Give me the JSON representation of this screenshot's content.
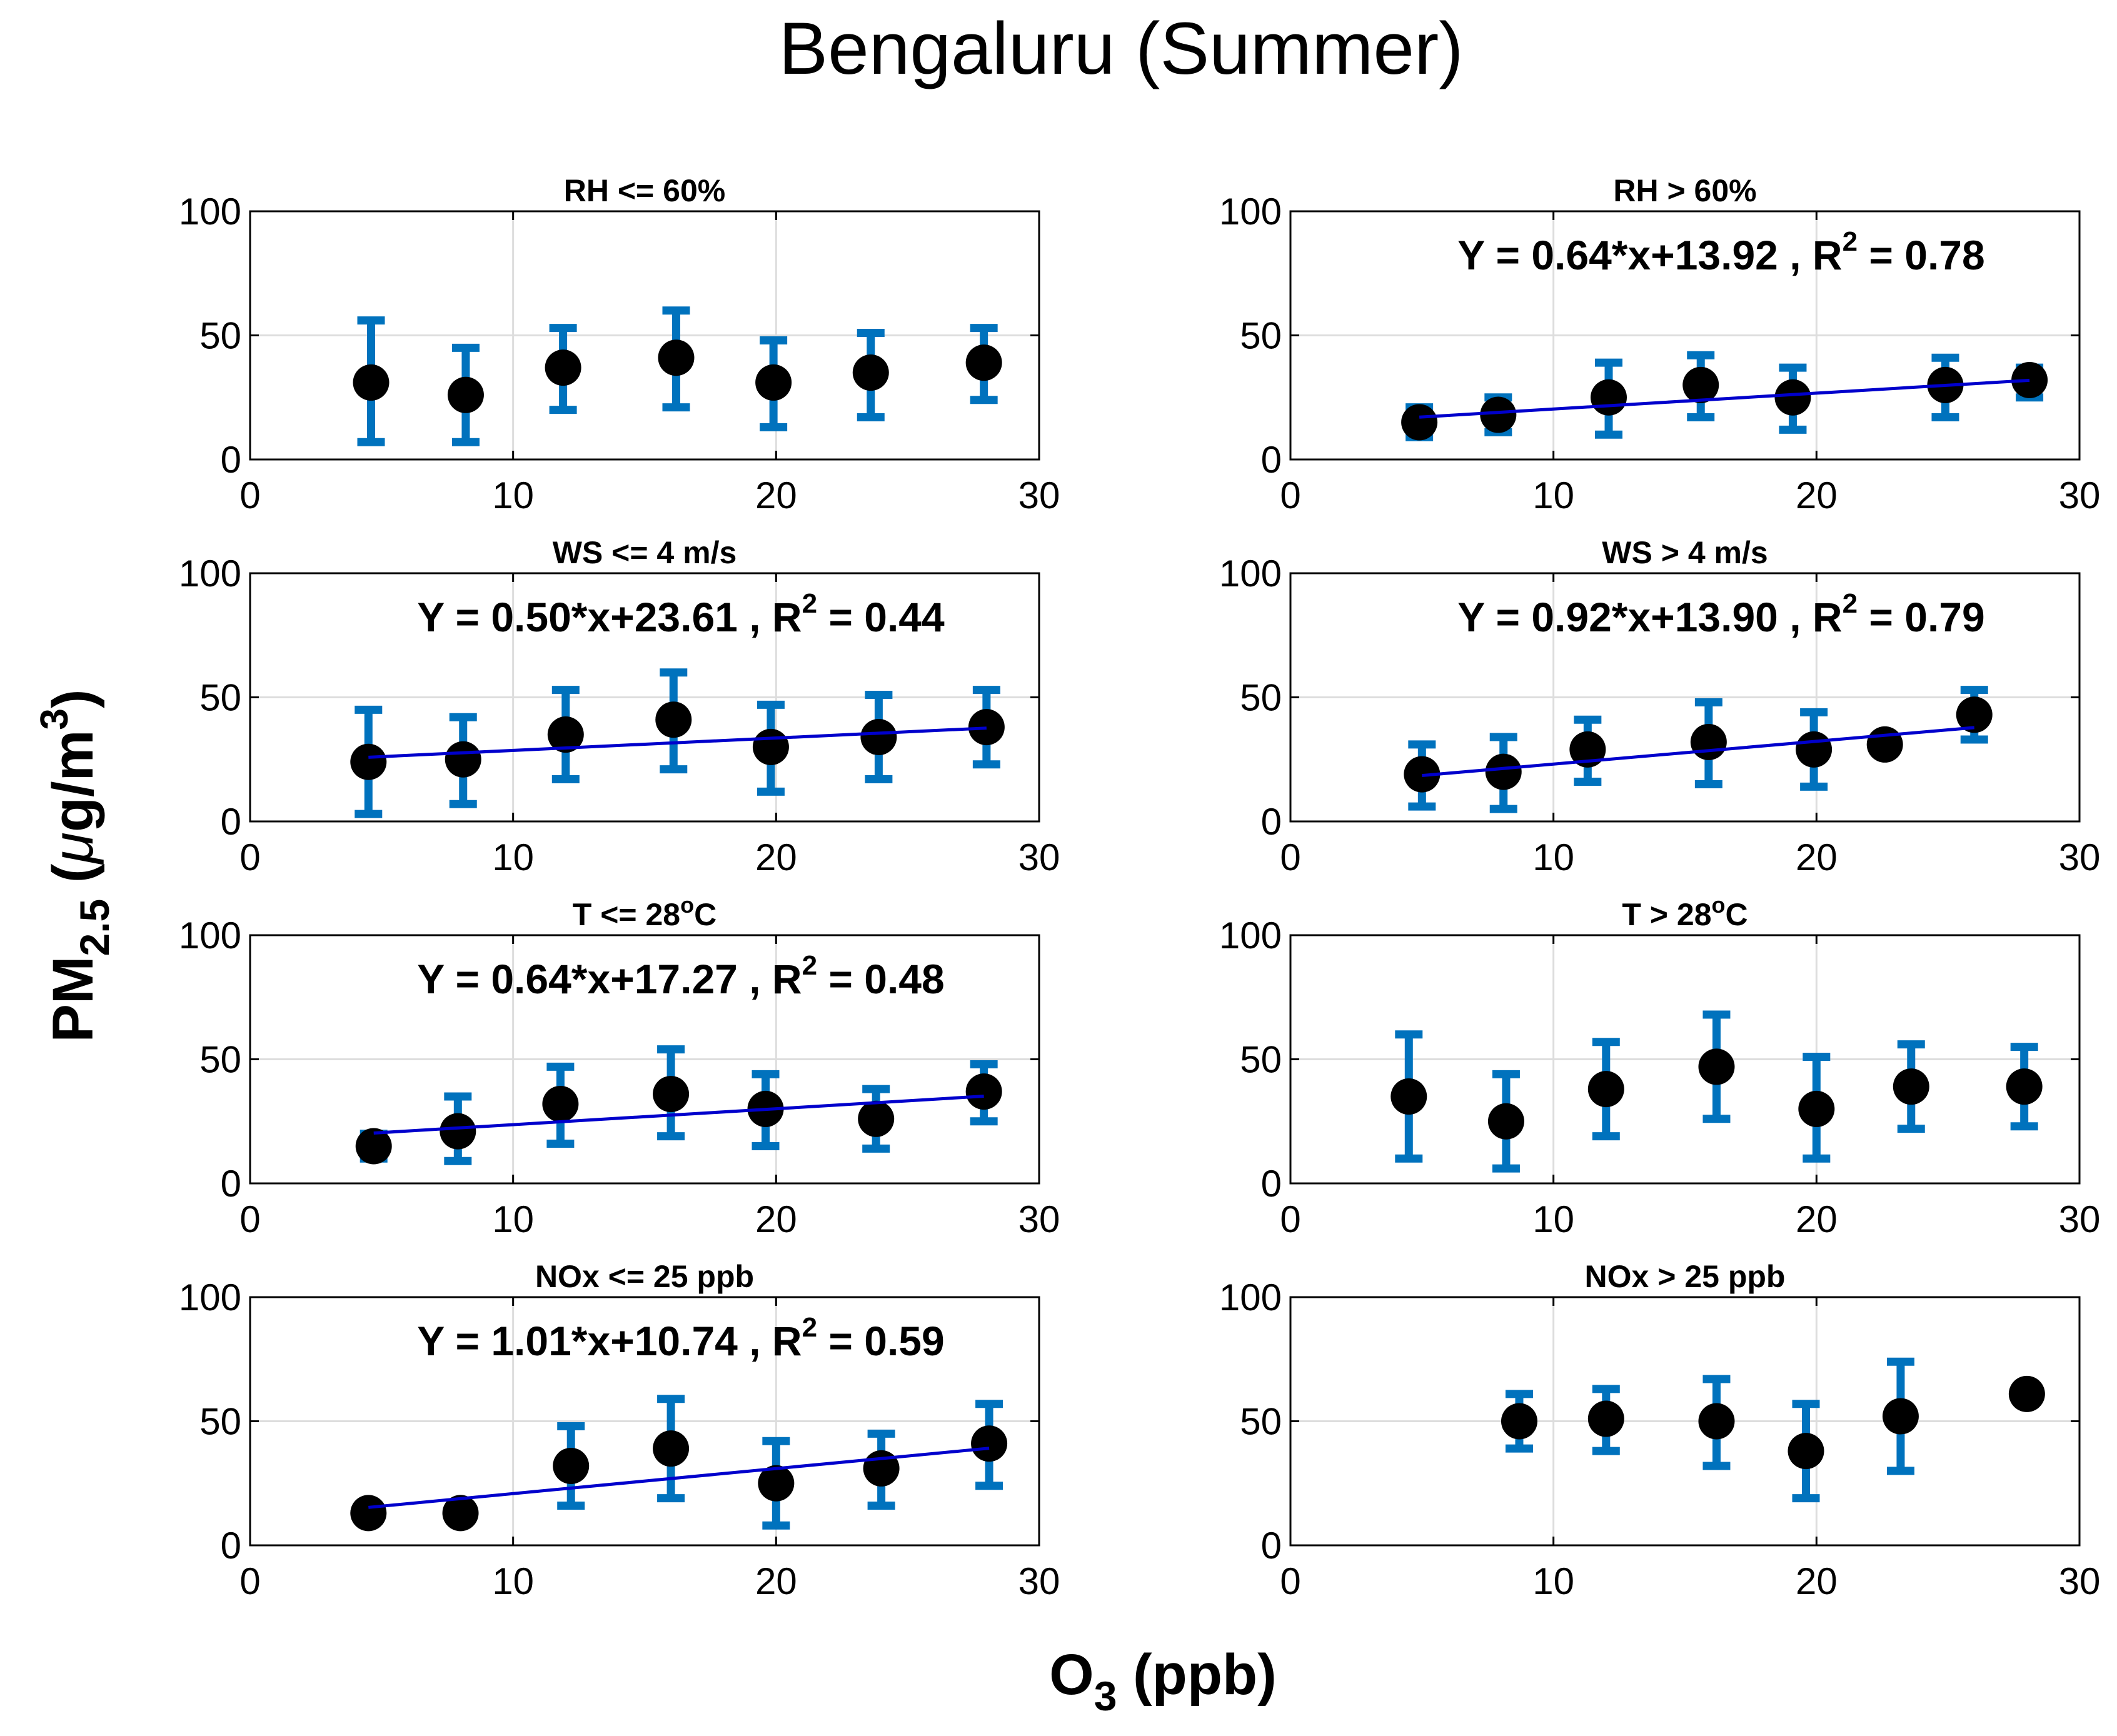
{
  "figure": {
    "title": "Bengaluru (Summer)",
    "ylabel": {
      "main": "PM",
      "sub": "2.5",
      "unit_open": " (",
      "mu": "μ",
      "unit": "g/m",
      "sup": "3",
      "unit_close": ")"
    },
    "xlabel": {
      "main": "O",
      "sub": "3",
      "unit": " (ppb)"
    }
  },
  "colors": {
    "errorbar": "#0072BD",
    "marker": "#000000",
    "fit_line": "#0000CC",
    "grid": "#DDDDDD",
    "axis": "#000000"
  },
  "chart_data": [
    {
      "type": "scatter",
      "panel": "RH <= 60%",
      "title": "RH <= 60%",
      "xlim": [
        0,
        30
      ],
      "ylim": [
        0,
        100
      ],
      "xticks": [
        0,
        10,
        20,
        30
      ],
      "yticks": [
        0,
        50,
        100
      ],
      "grid": true,
      "x": [
        4.6,
        8.2,
        11.9,
        16.2,
        19.9,
        23.6,
        27.9
      ],
      "y": [
        31,
        26,
        37,
        41,
        31,
        35,
        39
      ],
      "y_low": [
        7,
        7,
        20,
        21,
        13,
        17,
        24
      ],
      "y_high": [
        56,
        45,
        53,
        60,
        48,
        51,
        53
      ],
      "fit": null
    },
    {
      "type": "scatter",
      "panel": "RH > 60%",
      "title": "RH > 60%",
      "xlim": [
        0,
        30
      ],
      "ylim": [
        0,
        100
      ],
      "xticks": [
        0,
        10,
        20,
        30
      ],
      "yticks": [
        0,
        50,
        100
      ],
      "grid": true,
      "x": [
        4.9,
        7.9,
        12.1,
        15.6,
        19.1,
        24.9,
        28.1
      ],
      "y": [
        15,
        18,
        25,
        30,
        25,
        30,
        32
      ],
      "y_low": [
        9,
        11,
        10,
        17,
        12,
        17,
        25
      ],
      "y_high": [
        21,
        25,
        39,
        42,
        37,
        41,
        37
      ],
      "fit": {
        "slope": 0.64,
        "intercept": 13.92,
        "r2": 0.78,
        "x_range": [
          4.9,
          28.1
        ],
        "label_main": "Y = 0.64*x+13.92 , R",
        "label_sup": "2",
        "label_end": " = 0.78"
      }
    },
    {
      "type": "scatter",
      "panel": "WS <= 4 m/s",
      "title": "WS <= 4 m/s",
      "xlim": [
        0,
        30
      ],
      "ylim": [
        0,
        100
      ],
      "xticks": [
        0,
        10,
        20,
        30
      ],
      "yticks": [
        0,
        50,
        100
      ],
      "grid": true,
      "x": [
        4.5,
        8.1,
        12.0,
        16.1,
        19.8,
        23.9,
        28.0
      ],
      "y": [
        24,
        25,
        35,
        41,
        30,
        34,
        38
      ],
      "y_low": [
        3,
        7,
        17,
        21,
        12,
        17,
        23
      ],
      "y_high": [
        45,
        42,
        53,
        60,
        47,
        51,
        53
      ],
      "fit": {
        "slope": 0.5,
        "intercept": 23.61,
        "r2": 0.44,
        "x_range": [
          4.5,
          28.0
        ],
        "label_main": "Y = 0.50*x+23.61 , R",
        "label_sup": "2",
        "label_end": " = 0.44"
      }
    },
    {
      "type": "scatter",
      "panel": "WS > 4 m/s",
      "title": "WS > 4 m/s",
      "xlim": [
        0,
        30
      ],
      "ylim": [
        0,
        100
      ],
      "xticks": [
        0,
        10,
        20,
        30
      ],
      "yticks": [
        0,
        50,
        100
      ],
      "grid": true,
      "x": [
        5.0,
        8.1,
        11.3,
        15.9,
        19.9,
        22.6,
        26.0
      ],
      "y": [
        19,
        20,
        29,
        32,
        29,
        31,
        43
      ],
      "y_low": [
        6,
        5,
        16,
        15,
        14,
        28,
        33
      ],
      "y_high": [
        31,
        34,
        41,
        48,
        44,
        34,
        53
      ],
      "fit": {
        "slope": 0.92,
        "intercept": 13.9,
        "r2": 0.79,
        "x_range": [
          5.0,
          26.0
        ],
        "label_main": "Y = 0.92*x+13.90 , R",
        "label_sup": "2",
        "label_end": " = 0.79"
      }
    },
    {
      "type": "scatter",
      "panel": "T <= 28oC",
      "title": "T <= 28",
      "title_sup": "o",
      "title_end": "C",
      "xlim": [
        0,
        30
      ],
      "ylim": [
        0,
        100
      ],
      "xticks": [
        0,
        10,
        20,
        30
      ],
      "yticks": [
        0,
        50,
        100
      ],
      "grid": true,
      "x": [
        4.7,
        7.9,
        11.8,
        16.0,
        19.6,
        23.8,
        27.9
      ],
      "y": [
        15,
        21,
        32,
        36,
        30,
        26,
        37
      ],
      "y_low": [
        10,
        9,
        16,
        19,
        15,
        14,
        25
      ],
      "y_high": [
        20,
        35,
        47,
        54,
        44,
        38,
        48
      ],
      "fit": {
        "slope": 0.64,
        "intercept": 17.27,
        "r2": 0.48,
        "x_range": [
          4.7,
          27.9
        ],
        "label_main": "Y = 0.64*x+17.27 , R",
        "label_sup": "2",
        "label_end": " = 0.48"
      }
    },
    {
      "type": "scatter",
      "panel": "T > 28oC",
      "title": "T > 28",
      "title_sup": "o",
      "title_end": "C",
      "xlim": [
        0,
        30
      ],
      "ylim": [
        0,
        100
      ],
      "xticks": [
        0,
        10,
        20,
        30
      ],
      "yticks": [
        0,
        50,
        100
      ],
      "grid": true,
      "x": [
        4.5,
        8.2,
        12.0,
        16.2,
        20.0,
        23.6,
        27.9
      ],
      "y": [
        35,
        25,
        38,
        47,
        30,
        39,
        39
      ],
      "y_low": [
        10,
        6,
        19,
        26,
        10,
        22,
        23
      ],
      "y_high": [
        60,
        44,
        57,
        68,
        51,
        56,
        55
      ],
      "fit": null
    },
    {
      "type": "scatter",
      "panel": "NOx <= 25 ppb",
      "title": "NOx <= 25 ppb",
      "xlim": [
        0,
        30
      ],
      "ylim": [
        0,
        100
      ],
      "xticks": [
        0,
        10,
        20,
        30
      ],
      "yticks": [
        0,
        50,
        100
      ],
      "grid": true,
      "x": [
        4.5,
        8.0,
        12.2,
        16.0,
        20.0,
        24.0,
        28.1
      ],
      "y": [
        13,
        13,
        32,
        39,
        25,
        31,
        41
      ],
      "y_low": [
        10,
        10,
        16,
        19,
        8,
        16,
        24
      ],
      "y_high": [
        16,
        16,
        48,
        59,
        42,
        45,
        57
      ],
      "fit": {
        "slope": 1.01,
        "intercept": 10.74,
        "r2": 0.59,
        "x_range": [
          4.5,
          28.1
        ],
        "label_main": "Y = 1.01*x+10.74 , R",
        "label_sup": "2",
        "label_end": " = 0.59"
      }
    },
    {
      "type": "scatter",
      "panel": "NOx > 25 ppb",
      "title": "NOx > 25 ppb",
      "xlim": [
        0,
        30
      ],
      "ylim": [
        0,
        100
      ],
      "xticks": [
        0,
        10,
        20,
        30
      ],
      "yticks": [
        0,
        50,
        100
      ],
      "grid": true,
      "x": [
        8.7,
        12.0,
        16.2,
        19.6,
        23.2,
        28.0
      ],
      "y": [
        50,
        51,
        50,
        38,
        52,
        61
      ],
      "y_low": [
        39,
        38,
        32,
        19,
        30,
        58
      ],
      "y_high": [
        61,
        63,
        67,
        57,
        74,
        64
      ],
      "fit": null
    }
  ]
}
